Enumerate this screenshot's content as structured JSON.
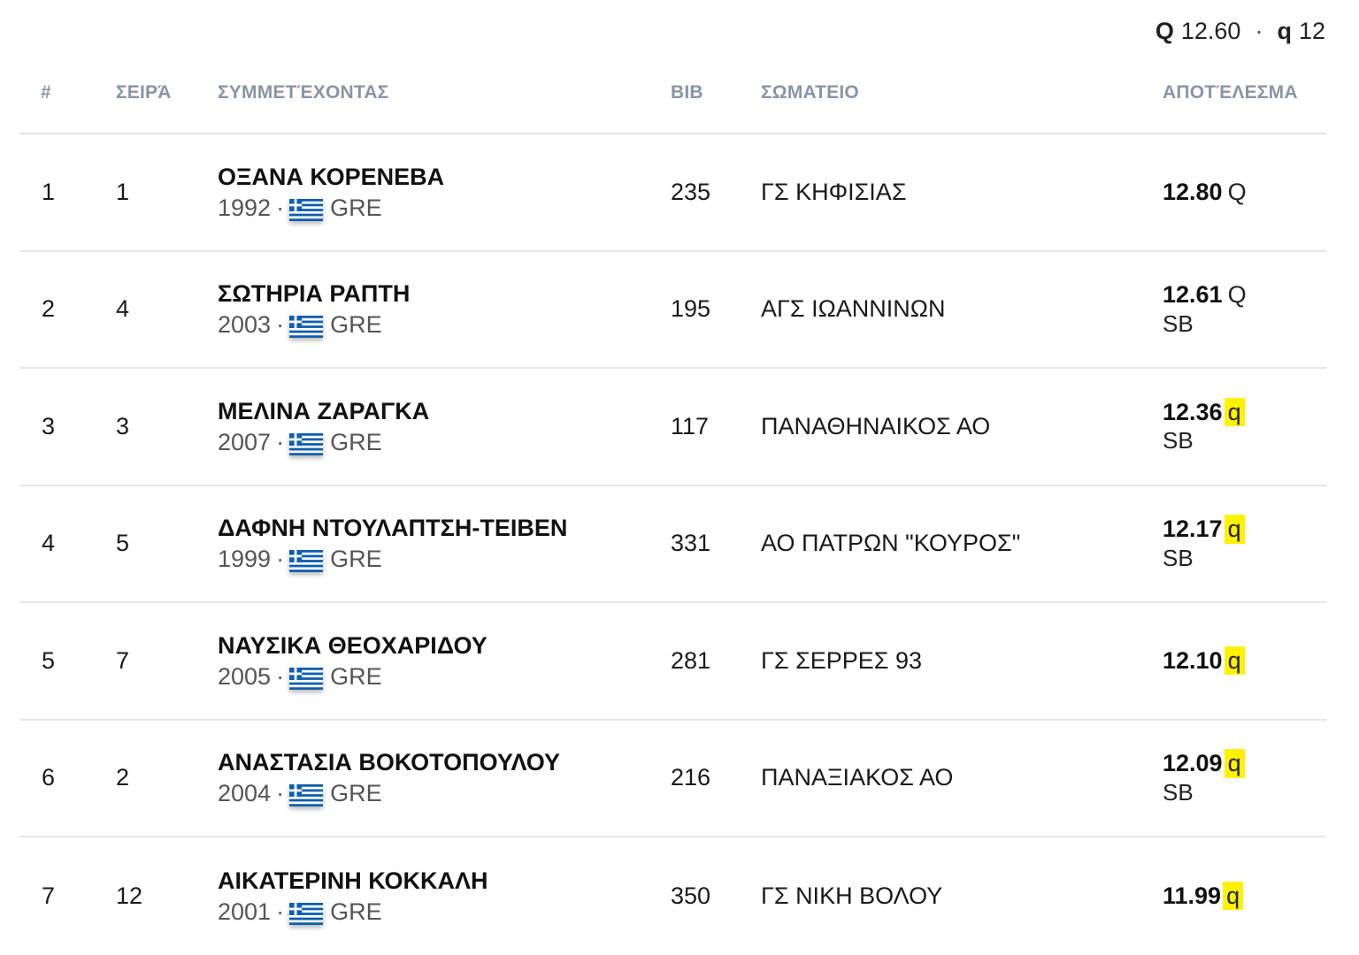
{
  "legend": {
    "Q_label": "Q",
    "Q_value": "12.60",
    "separator": "·",
    "q_label": "q",
    "q_value": "12"
  },
  "columns": {
    "rank": "#",
    "heat": "ΣΕΙΡΆ",
    "athlete": "ΣΥΜΜΕΤΈΧΟΝΤΑΣ",
    "bib": "BIB",
    "club": "ΣΩΜΑΤΕΙΟ",
    "result": "ΑΠΟΤΈΛΕΣΜΑ"
  },
  "rows": [
    {
      "rank": "1",
      "heat": "1",
      "name": "ΟΞΑΝΑ ΚΟΡΕΝΕΒΑ",
      "year": "1992",
      "sep": "·",
      "country": "GRE",
      "flag": "greece-flag",
      "bib": "235",
      "club": "ΓΣ ΚΗΦΙΣΙΑΣ",
      "mark": "12.80",
      "qual": "Q",
      "note": ""
    },
    {
      "rank": "2",
      "heat": "4",
      "name": "ΣΩΤΗΡΙΑ ΡΑΠΤΗ",
      "year": "2003",
      "sep": "·",
      "country": "GRE",
      "flag": "greece-flag",
      "bib": "195",
      "club": "ΑΓΣ ΙΩΑΝΝΙΝΩΝ",
      "mark": "12.61",
      "qual": "Q",
      "note": "SB"
    },
    {
      "rank": "3",
      "heat": "3",
      "name": "ΜΕΛΙΝΑ ΖΑΡΑΓΚΑ",
      "year": "2007",
      "sep": "·",
      "country": "GRE",
      "flag": "greece-flag",
      "bib": "117",
      "club": "ΠΑΝΑΘΗΝΑΙΚΟΣ ΑΟ",
      "mark": "12.36",
      "qual": "q",
      "note": "SB"
    },
    {
      "rank": "4",
      "heat": "5",
      "name": "ΔΑΦΝΗ ΝΤΟΥΛΑΠΤΣΗ-ΤΕΙΒΕΝ",
      "year": "1999",
      "sep": "·",
      "country": "GRE",
      "flag": "greece-flag",
      "bib": "331",
      "club": "ΑΟ ΠΑΤΡΩΝ \"ΚΟΥΡΟΣ\"",
      "mark": "12.17",
      "qual": "q",
      "note": "SB"
    },
    {
      "rank": "5",
      "heat": "7",
      "name": "ΝΑΥΣΙΚΑ ΘΕΟΧΑΡΙΔΟΥ",
      "year": "2005",
      "sep": "·",
      "country": "GRE",
      "flag": "greece-flag",
      "bib": "281",
      "club": "ΓΣ ΣΕΡΡΕΣ 93",
      "mark": "12.10",
      "qual": "q",
      "note": ""
    },
    {
      "rank": "6",
      "heat": "2",
      "name": "ΑΝΑΣΤΑΣΙΑ ΒΟΚΟΤΟΠΟΥΛΟΥ",
      "year": "2004",
      "sep": "·",
      "country": "GRE",
      "flag": "greece-flag",
      "bib": "216",
      "club": "ΠΑΝΑΞΙΑΚΟΣ ΑΟ",
      "mark": "12.09",
      "qual": "q",
      "note": "SB"
    },
    {
      "rank": "7",
      "heat": "12",
      "name": "ΑΙΚΑΤΕΡΙΝΗ ΚΟΚΚΑΛΗ",
      "year": "2001",
      "sep": "·",
      "country": "GRE",
      "flag": "greece-flag",
      "bib": "350",
      "club": "ΓΣ ΝΙΚΗ ΒΟΛΟΥ",
      "mark": "11.99",
      "qual": "q",
      "note": ""
    }
  ],
  "colors": {
    "header_text": "#8a94a6",
    "highlight": "#fff200",
    "flag_blue": "#0d5eaf",
    "divider": "#e6e6e6"
  }
}
